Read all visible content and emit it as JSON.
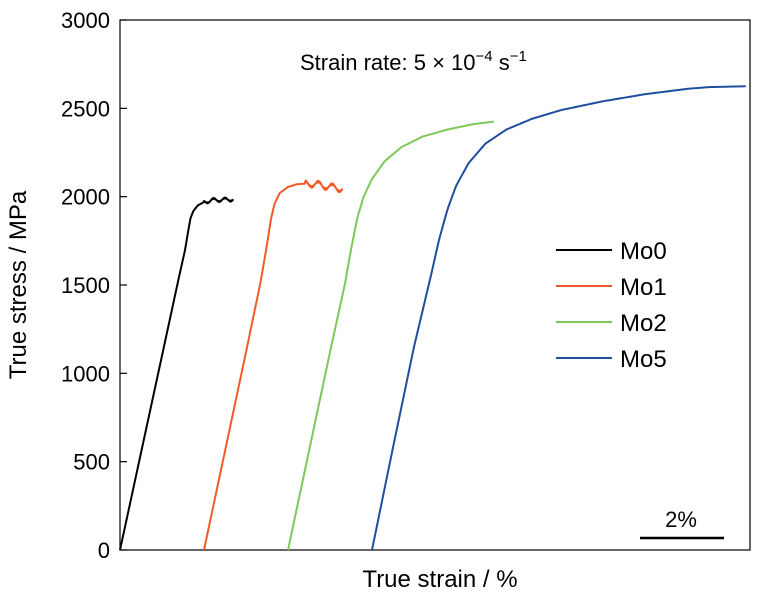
{
  "chart_data": {
    "type": "line",
    "xlabel": "True strain / %",
    "ylabel": "True stress / MPa",
    "ylim": [
      0,
      3000
    ],
    "y_ticks": [
      "0",
      "500",
      "1000",
      "1500",
      "2000",
      "2500",
      "3000"
    ],
    "xlim": [
      0,
      15
    ],
    "grid": false,
    "legend_position": "right",
    "annotation": {
      "prefix": "Strain rate: 5 × 10",
      "exponent": "−4",
      "unit": " s",
      "unit_exponent": "−1"
    },
    "scale_bar": {
      "label": "2%",
      "length": 2
    },
    "series": [
      {
        "name": "Mo0",
        "color": "#000000",
        "points": [
          [
            0,
            0
          ],
          [
            0.5,
            550
          ],
          [
            1.0,
            1100
          ],
          [
            1.4,
            1540
          ],
          [
            1.55,
            1700
          ],
          [
            1.62,
            1800
          ],
          [
            1.68,
            1880
          ],
          [
            1.75,
            1920
          ],
          [
            1.85,
            1950
          ],
          [
            2.0,
            1970
          ],
          [
            2.2,
            1980
          ],
          [
            2.4,
            1982
          ],
          [
            2.6,
            1984
          ],
          [
            2.7,
            1985
          ]
        ],
        "wobble": {
          "from": 2.0,
          "amp": 12
        }
      },
      {
        "name": "Mo1",
        "color": "#f05a28",
        "points": [
          [
            2.0,
            0
          ],
          [
            2.5,
            560
          ],
          [
            3.0,
            1120
          ],
          [
            3.35,
            1520
          ],
          [
            3.5,
            1730
          ],
          [
            3.6,
            1880
          ],
          [
            3.68,
            1960
          ],
          [
            3.8,
            2020
          ],
          [
            4.0,
            2055
          ],
          [
            4.2,
            2070
          ],
          [
            4.5,
            2075
          ],
          [
            4.8,
            2065
          ],
          [
            5.0,
            2055
          ],
          [
            5.3,
            2045
          ]
        ],
        "wobble": {
          "from": 4.4,
          "amp": 22
        }
      },
      {
        "name": "Mo2",
        "color": "#7ec85a",
        "points": [
          [
            4.0,
            0
          ],
          [
            4.5,
            560
          ],
          [
            5.0,
            1120
          ],
          [
            5.35,
            1500
          ],
          [
            5.5,
            1700
          ],
          [
            5.65,
            1880
          ],
          [
            5.8,
            2000
          ],
          [
            6.0,
            2100
          ],
          [
            6.3,
            2200
          ],
          [
            6.7,
            2280
          ],
          [
            7.2,
            2340
          ],
          [
            7.8,
            2380
          ],
          [
            8.4,
            2410
          ],
          [
            8.9,
            2425
          ]
        ],
        "wobble": null
      },
      {
        "name": "Mo5",
        "color": "#1f4e9e",
        "points": [
          [
            6.0,
            0
          ],
          [
            6.5,
            580
          ],
          [
            7.0,
            1150
          ],
          [
            7.4,
            1550
          ],
          [
            7.6,
            1760
          ],
          [
            7.8,
            1930
          ],
          [
            8.0,
            2060
          ],
          [
            8.3,
            2190
          ],
          [
            8.7,
            2300
          ],
          [
            9.2,
            2380
          ],
          [
            9.8,
            2440
          ],
          [
            10.5,
            2490
          ],
          [
            11.5,
            2540
          ],
          [
            12.5,
            2580
          ],
          [
            13.5,
            2610
          ],
          [
            14.0,
            2620
          ],
          [
            14.9,
            2625
          ]
        ],
        "wobble": null
      }
    ]
  }
}
